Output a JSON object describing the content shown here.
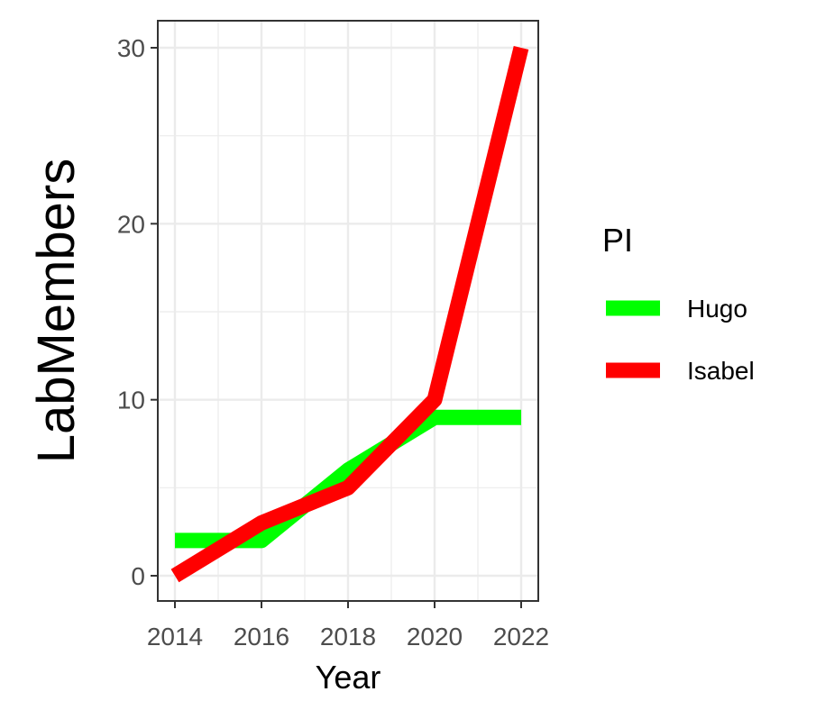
{
  "chart_data": {
    "type": "line",
    "xlabel": "Year",
    "ylabel": "LabMembers",
    "xlim": [
      2014,
      2022
    ],
    "ylim": [
      0,
      30
    ],
    "x_ticks": [
      2014,
      2016,
      2018,
      2020,
      2022
    ],
    "y_ticks": [
      0,
      10,
      20,
      30
    ],
    "grid": true,
    "legend": {
      "title": "PI",
      "placement": "right"
    },
    "series": [
      {
        "name": "Hugo",
        "color": "#00ff00",
        "x": [
          2014,
          2016,
          2018,
          2020,
          2022
        ],
        "y": [
          2,
          2,
          6,
          9,
          9
        ]
      },
      {
        "name": "Isabel",
        "color": "#ff0000",
        "x": [
          2014,
          2016,
          2018,
          2020,
          2022
        ],
        "y": [
          0,
          3,
          5,
          10,
          30
        ]
      }
    ]
  }
}
